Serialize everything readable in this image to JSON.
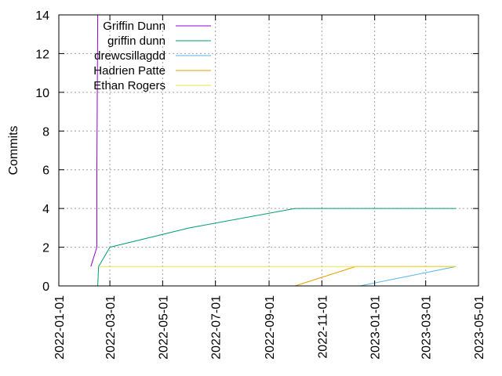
{
  "chart_data": {
    "type": "line",
    "title": "",
    "xlabel": "",
    "ylabel": "Commits",
    "x_type": "date",
    "xlim": [
      "2022-01-01",
      "2023-05-01"
    ],
    "ylim": [
      0,
      14
    ],
    "xticks": [
      "2022-01-01",
      "2022-03-01",
      "2022-05-01",
      "2022-07-01",
      "2022-09-01",
      "2022-11-01",
      "2023-01-01",
      "2023-03-01",
      "2023-05-01"
    ],
    "yticks": [
      0,
      2,
      4,
      6,
      8,
      10,
      12,
      14
    ],
    "grid": true,
    "legend_position": "top-left",
    "series": [
      {
        "name": "Griffin Dunn",
        "color": "#9400d3",
        "points": [
          [
            "2022-02-07",
            1
          ],
          [
            "2022-02-14",
            2
          ],
          [
            "2022-02-14",
            6
          ],
          [
            "2022-02-15",
            14
          ]
        ]
      },
      {
        "name": "griffin dunn",
        "color": "#009e73",
        "points": [
          [
            "2022-02-15",
            0
          ],
          [
            "2022-02-16",
            1
          ],
          [
            "2022-03-01",
            2
          ],
          [
            "2022-06-01",
            3
          ],
          [
            "2022-10-01",
            4
          ],
          [
            "2023-04-05",
            4
          ]
        ]
      },
      {
        "name": "drewcsillagdd",
        "color": "#56b4e9",
        "points": [
          [
            "2022-12-15",
            0
          ],
          [
            "2023-04-05",
            1
          ]
        ]
      },
      {
        "name": "Hadrien Patte",
        "color": "#e69f00",
        "points": [
          [
            "2022-10-01",
            0
          ],
          [
            "2022-12-10",
            1
          ],
          [
            "2023-04-05",
            1
          ]
        ]
      },
      {
        "name": "Ethan Rogers",
        "color": "#f0e442",
        "points": [
          [
            "2022-02-17",
            1
          ],
          [
            "2023-04-05",
            1
          ]
        ]
      }
    ]
  }
}
